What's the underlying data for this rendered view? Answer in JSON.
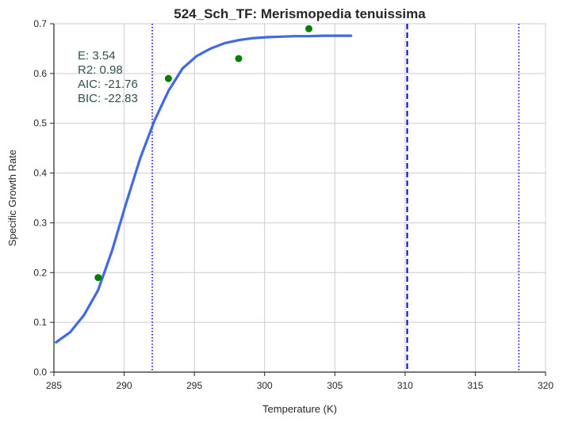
{
  "chart_data": {
    "type": "line",
    "title": "524_Sch_TF: Merismopedia tenuissima",
    "xlabel": "Temperature (K)",
    "ylabel": "Specific Growth Rate",
    "xlim": [
      285,
      320
    ],
    "ylim": [
      0.0,
      0.7
    ],
    "x_ticks": [
      285,
      290,
      295,
      300,
      305,
      310,
      315,
      320
    ],
    "y_ticks": [
      0.0,
      0.1,
      0.2,
      0.3,
      0.4,
      0.5,
      0.6,
      0.7
    ],
    "x_tick_labels": [
      "285",
      "290",
      "295",
      "300",
      "305",
      "310",
      "315",
      "320"
    ],
    "y_tick_labels": [
      "0.0",
      "0.1",
      "0.2",
      "0.3",
      "0.4",
      "0.5",
      "0.6",
      "0.7"
    ],
    "grid": true,
    "fit_curve": {
      "color": "#4169e1",
      "x": [
        285.15,
        286.15,
        287.15,
        288.15,
        289.15,
        290.15,
        291.15,
        292.15,
        293.15,
        294.15,
        295.15,
        296.15,
        297.15,
        298.15,
        299.15,
        300.15,
        301.15,
        302.15,
        303.15,
        304.15,
        305.15,
        306.15
      ],
      "y": [
        0.06,
        0.08,
        0.115,
        0.165,
        0.245,
        0.34,
        0.43,
        0.505,
        0.565,
        0.61,
        0.635,
        0.65,
        0.661,
        0.667,
        0.671,
        0.673,
        0.674,
        0.675,
        0.675,
        0.676,
        0.676,
        0.676
      ]
    },
    "points": {
      "color": "#008000",
      "x": [
        288.15,
        293.15,
        298.15,
        303.15
      ],
      "y": [
        0.19,
        0.59,
        0.63,
        0.69
      ]
    },
    "vlines": [
      {
        "x": 292.0,
        "style": "dotted",
        "color": "#0000ff"
      },
      {
        "x": 310.15,
        "style": "dashed",
        "color": "#0000cd"
      },
      {
        "x": 318.1,
        "style": "dotted",
        "color": "#0000ff"
      }
    ],
    "stats": [
      {
        "label": "E:",
        "value": "3.54"
      },
      {
        "label": "R2:",
        "value": "0.98"
      },
      {
        "label": "AIC:",
        "value": "-21.76"
      },
      {
        "label": "BIC:",
        "value": "-22.83"
      }
    ]
  }
}
